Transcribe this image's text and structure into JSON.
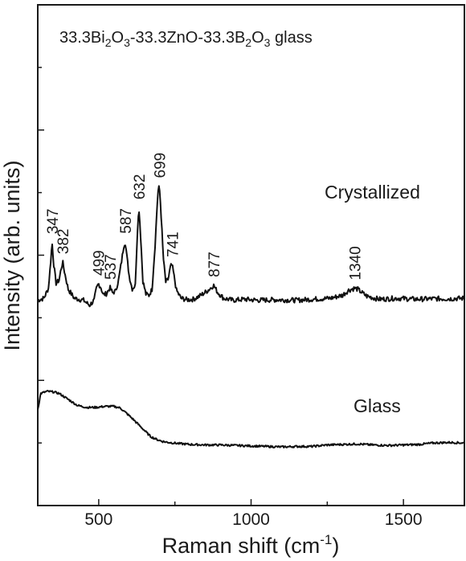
{
  "chart_data": {
    "type": "line",
    "title_parts": [
      "33.3Bi",
      "2",
      "O",
      "3",
      "-33.3ZnO-33.3B",
      "2",
      "O",
      "3",
      " glass"
    ],
    "xlabel": "Raman shift (cm",
    "xlabel_sup": "-1",
    "xlabel_close": ")",
    "ylabel": "Intensity (arb. units)",
    "xlim": [
      300,
      1700
    ],
    "xticks": [
      500,
      1000,
      1500
    ],
    "xtick_labels": [
      "500",
      "1000",
      "1500"
    ],
    "ylim": [
      0,
      1
    ],
    "grid": false,
    "series": [
      {
        "name": "Crystallized",
        "x": [
          300,
          320,
          335,
          342,
          347,
          352,
          360,
          370,
          377,
          382,
          388,
          400,
          420,
          450,
          470,
          485,
          492,
          499,
          507,
          515,
          525,
          530,
          537,
          545,
          555,
          565,
          575,
          582,
          587,
          592,
          600,
          610,
          620,
          627,
          632,
          637,
          645,
          655,
          665,
          675,
          685,
          694,
          699,
          704,
          712,
          720,
          728,
          736,
          741,
          746,
          755,
          770,
          790,
          810,
          830,
          850,
          865,
          877,
          890,
          910,
          940,
          980,
          1020,
          1080,
          1150,
          1200,
          1260,
          1300,
          1320,
          1330,
          1340,
          1350,
          1360,
          1380,
          1420,
          1480,
          1540,
          1600,
          1650,
          1700
        ],
        "y": [
          0.41,
          0.414,
          0.434,
          0.484,
          0.526,
          0.484,
          0.444,
          0.45,
          0.474,
          0.486,
          0.466,
          0.432,
          0.414,
          0.41,
          0.4,
          0.41,
          0.432,
          0.443,
          0.436,
          0.421,
          0.423,
          0.428,
          0.435,
          0.425,
          0.428,
          0.45,
          0.488,
          0.518,
          0.527,
          0.5,
          0.459,
          0.433,
          0.44,
          0.549,
          0.595,
          0.545,
          0.448,
          0.422,
          0.42,
          0.432,
          0.52,
          0.625,
          0.638,
          0.59,
          0.494,
          0.446,
          0.452,
          0.478,
          0.48,
          0.463,
          0.43,
          0.414,
          0.411,
          0.412,
          0.418,
          0.426,
          0.433,
          0.44,
          0.426,
          0.414,
          0.41,
          0.412,
          0.41,
          0.411,
          0.41,
          0.412,
          0.414,
          0.42,
          0.43,
          0.432,
          0.434,
          0.432,
          0.427,
          0.418,
          0.412,
          0.414,
          0.412,
          0.413,
          0.413,
          0.414
        ]
      },
      {
        "name": "Glass",
        "x": [
          300,
          310,
          330,
          350,
          370,
          400,
          430,
          460,
          490,
          520,
          550,
          570,
          590,
          610,
          630,
          650,
          670,
          690,
          710,
          730,
          760,
          800,
          850,
          900,
          950,
          1000,
          1050,
          1100,
          1150,
          1200,
          1250,
          1300,
          1350,
          1400,
          1450,
          1500,
          1550,
          1600,
          1650,
          1700
        ],
        "y": [
          0.192,
          0.224,
          0.228,
          0.227,
          0.224,
          0.212,
          0.2,
          0.196,
          0.196,
          0.198,
          0.198,
          0.195,
          0.185,
          0.174,
          0.162,
          0.15,
          0.138,
          0.132,
          0.128,
          0.126,
          0.124,
          0.122,
          0.121,
          0.121,
          0.12,
          0.119,
          0.118,
          0.117,
          0.118,
          0.118,
          0.121,
          0.122,
          0.123,
          0.121,
          0.12,
          0.121,
          0.122,
          0.125,
          0.126,
          0.125
        ]
      }
    ],
    "peak_labels": [
      {
        "x": 347,
        "text": "347"
      },
      {
        "x": 382,
        "text": "382"
      },
      {
        "x": 499,
        "text": "499"
      },
      {
        "x": 537,
        "text": "537"
      },
      {
        "x": 587,
        "text": "587"
      },
      {
        "x": 632,
        "text": "632"
      },
      {
        "x": 699,
        "text": "699"
      },
      {
        "x": 741,
        "text": "741"
      },
      {
        "x": 877,
        "text": "877"
      },
      {
        "x": 1340,
        "text": "1340"
      }
    ],
    "series_labels": [
      "Crystallized",
      "Glass"
    ]
  }
}
